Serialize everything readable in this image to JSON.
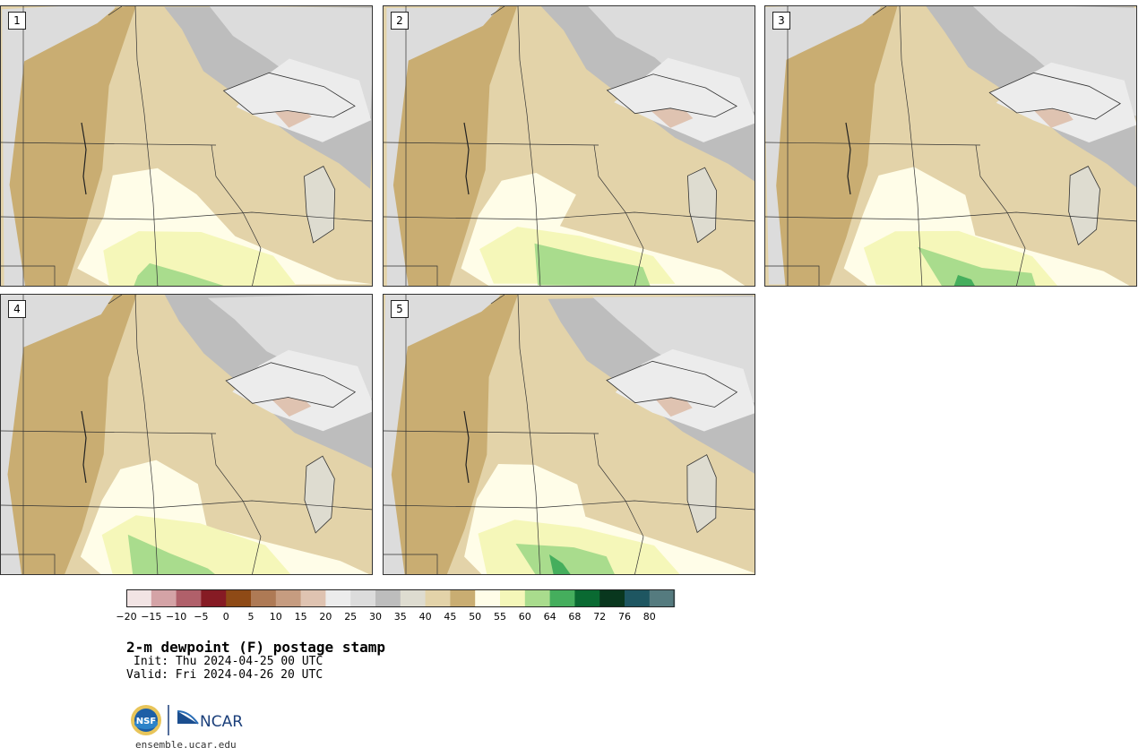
{
  "stamps": [
    {
      "label": "1"
    },
    {
      "label": "2"
    },
    {
      "label": "3"
    },
    {
      "label": "4"
    },
    {
      "label": "5"
    }
  ],
  "colorbar": {
    "tick_labels": [
      "−20",
      "−15",
      "−10",
      "−5",
      "0",
      "5",
      "10",
      "15",
      "20",
      "25",
      "30",
      "35",
      "40",
      "45",
      "50",
      "55",
      "60",
      "64",
      "68",
      "72",
      "76",
      "80"
    ],
    "colors": [
      "#f2e4e4",
      "#d4a3a6",
      "#b0606a",
      "#861b24",
      "#8e4a16",
      "#ae7a55",
      "#c69c80",
      "#dfc3b1",
      "#ececec",
      "#dcdcdc",
      "#bdbdbd",
      "#dedcd0",
      "#e3d3a9",
      "#c9ad72",
      "#fffde8",
      "#f5f7b9",
      "#a9dc8d",
      "#45ae5d",
      "#0a6a32",
      "#09371e",
      "#1e5661",
      "#557b7f"
    ]
  },
  "title": "2-m dewpoint (F) postage stamp",
  "init": "Init: Thu 2024-04-25 00 UTC",
  "valid": "Valid: Fri 2024-04-26 20 UTC",
  "logos": {
    "nsf": "NSF",
    "ncar": "NCAR"
  },
  "site": "ensemble.ucar.edu"
}
